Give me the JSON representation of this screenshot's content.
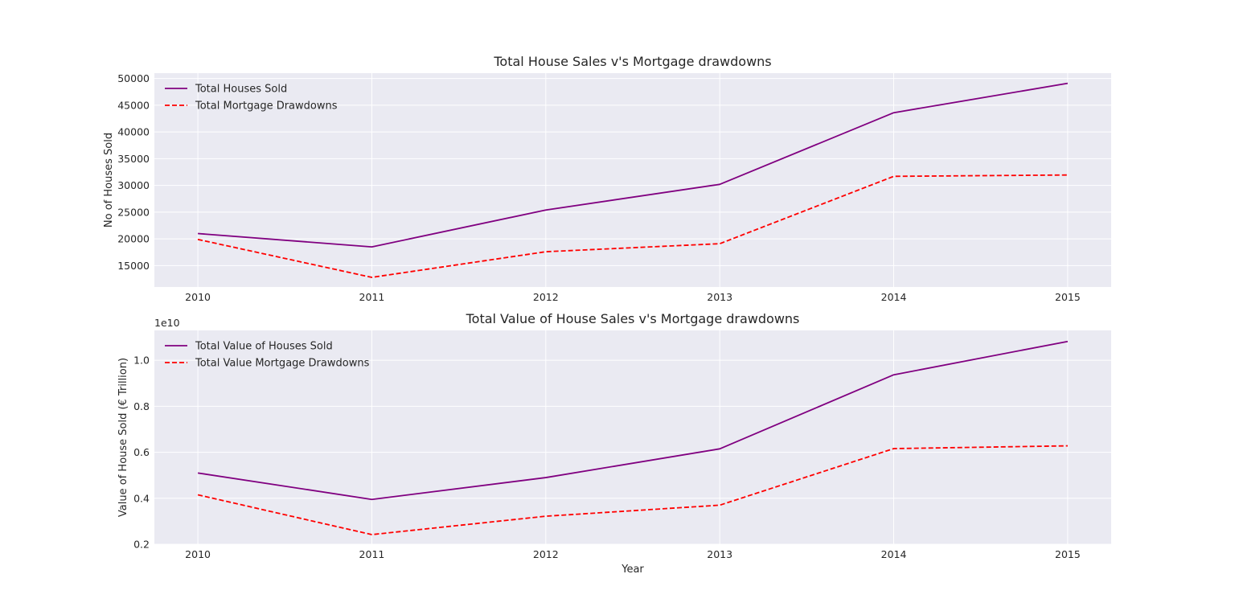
{
  "chart_data": [
    {
      "type": "line",
      "title": "Total House Sales v's Mortgage drawdowns",
      "xlabel": "",
      "ylabel": "No of Houses Sold",
      "x": [
        2010,
        2011,
        2012,
        2013,
        2014,
        2015
      ],
      "x_tick_labels": [
        "2010",
        "2011",
        "2012",
        "2013",
        "2014",
        "2015"
      ],
      "xlim": [
        2009.75,
        2015.25
      ],
      "ylim": [
        11000,
        51000
      ],
      "y_ticks": [
        15000,
        20000,
        25000,
        30000,
        35000,
        40000,
        45000,
        50000
      ],
      "y_tick_labels": [
        "15000",
        "20000",
        "25000",
        "30000",
        "35000",
        "40000",
        "45000",
        "50000"
      ],
      "grid": true,
      "legend_position": "top-left",
      "series": [
        {
          "name": "Total Houses Sold",
          "values": [
            21000,
            18500,
            25400,
            30200,
            43600,
            49100
          ],
          "color": "#800080",
          "style": "solid"
        },
        {
          "name": "Total Mortgage Drawdowns",
          "values": [
            19900,
            12800,
            17600,
            19100,
            31700,
            31950
          ],
          "color": "#ff0000",
          "style": "dashed"
        }
      ]
    },
    {
      "type": "line",
      "title": "Total Value of House Sales v's Mortgage drawdowns",
      "xlabel": "Year",
      "ylabel": "Value of House Sold (€ Trillion)",
      "offset_text": "1e10",
      "x": [
        2010,
        2011,
        2012,
        2013,
        2014,
        2015
      ],
      "x_tick_labels": [
        "2010",
        "2011",
        "2012",
        "2013",
        "2014",
        "2015"
      ],
      "xlim": [
        2009.75,
        2015.25
      ],
      "ylim": [
        0.2,
        1.13
      ],
      "y_ticks": [
        0.2,
        0.4,
        0.6,
        0.8,
        1.0
      ],
      "y_tick_labels": [
        "0.2",
        "0.4",
        "0.6",
        "0.8",
        "1.0"
      ],
      "grid": true,
      "legend_position": "top-left",
      "series": [
        {
          "name": "Total Value of Houses Sold",
          "values": [
            0.51,
            0.395,
            0.49,
            0.615,
            0.937,
            1.082
          ],
          "color": "#800080",
          "style": "solid"
        },
        {
          "name": "Total Value Mortgage Drawdowns",
          "values": [
            0.415,
            0.242,
            0.322,
            0.37,
            0.616,
            0.628
          ],
          "color": "#ff0000",
          "style": "dashed"
        }
      ]
    }
  ]
}
